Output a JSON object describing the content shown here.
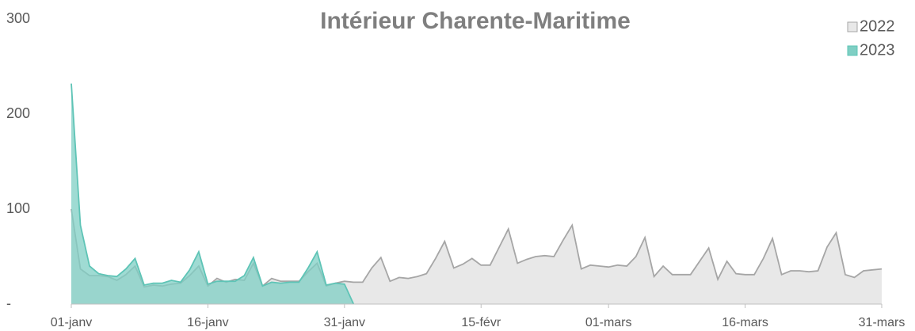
{
  "chart_data": {
    "type": "area",
    "title": "Intérieur Charente-Maritime",
    "categories": [
      "01-janv",
      null,
      null,
      null,
      null,
      null,
      null,
      null,
      null,
      null,
      null,
      null,
      null,
      null,
      null,
      "16-janv",
      null,
      null,
      null,
      null,
      null,
      null,
      null,
      null,
      null,
      null,
      null,
      null,
      null,
      null,
      "31-janv",
      null,
      null,
      null,
      null,
      null,
      null,
      null,
      null,
      null,
      null,
      null,
      null,
      null,
      null,
      "15-févr",
      null,
      null,
      null,
      null,
      null,
      null,
      null,
      null,
      null,
      null,
      null,
      null,
      null,
      "01-mars",
      null,
      null,
      null,
      null,
      null,
      null,
      null,
      null,
      null,
      null,
      null,
      null,
      null,
      null,
      "16-mars",
      null,
      null,
      null,
      null,
      null,
      null,
      null,
      null,
      null,
      null,
      null,
      null,
      null,
      null,
      "31-mars"
    ],
    "series": [
      {
        "name": "2022",
        "color": "#e8e8e8",
        "line_color": "#a6a6a6",
        "values": [
          100,
          37,
          30,
          30,
          29,
          25,
          31,
          40,
          18,
          20,
          19,
          21,
          22,
          30,
          40,
          19,
          27,
          23,
          26,
          25,
          43,
          19,
          27,
          24,
          24,
          24,
          34,
          43,
          19,
          22,
          24,
          23,
          23,
          38,
          49,
          24,
          28,
          27,
          29,
          32,
          48,
          66,
          38,
          42,
          48,
          41,
          41,
          60,
          79,
          43,
          47,
          50,
          51,
          50,
          67,
          83,
          37,
          41,
          40,
          39,
          41,
          40,
          50,
          70,
          29,
          40,
          31,
          31,
          31,
          45,
          59,
          26,
          45,
          32,
          31,
          31,
          48,
          69,
          31,
          35,
          35,
          34,
          35,
          60,
          75,
          31,
          28,
          35,
          36,
          37
        ]
      },
      {
        "name": "2023",
        "color": "#7fcfc4",
        "line_color": "#5ec4b6",
        "values": [
          232,
          83,
          40,
          32,
          30,
          29,
          37,
          48,
          20,
          22,
          22,
          25,
          23,
          36,
          55,
          21,
          24,
          24,
          24,
          30,
          49,
          19,
          23,
          22,
          23,
          23,
          38,
          55,
          20,
          22,
          21,
          0,
          null,
          null,
          null,
          null,
          null,
          null,
          null,
          null,
          null,
          null,
          null,
          null,
          null,
          null,
          null,
          null,
          null,
          null,
          null,
          null,
          null,
          null,
          null,
          null,
          null,
          null,
          null,
          null,
          null,
          null,
          null,
          null,
          null,
          null,
          null,
          null,
          null,
          null,
          null,
          null,
          null,
          null,
          null,
          null,
          null,
          null,
          null,
          null,
          null,
          null,
          null,
          null,
          null,
          null,
          null,
          null,
          null,
          null
        ]
      }
    ],
    "ylim": [
      0,
      300
    ],
    "yticks": [
      {
        "value": 0,
        "label": "-"
      },
      100,
      200,
      300
    ],
    "legend": "top-right"
  }
}
